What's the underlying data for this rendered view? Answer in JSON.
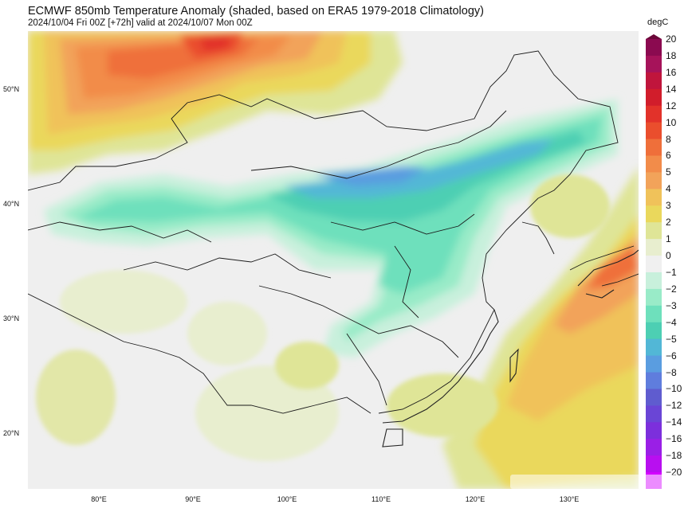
{
  "header": {
    "title": "ECMWF 850mb Temperature Anomaly (shaded, based on ERA5 1979-2018 Climatology)",
    "subtitle": "2024/10/04 Fri 00Z [+72h] valid at 2024/10/07 Mon 00Z"
  },
  "map": {
    "lat_labels": [
      "50°N",
      "40°N",
      "30°N",
      "20°N"
    ],
    "lon_labels": [
      "80°E",
      "90°E",
      "100°E",
      "110°E",
      "120°E",
      "130°E"
    ]
  },
  "colorbar": {
    "unit": "degC",
    "levels": [
      "20",
      "18",
      "16",
      "14",
      "12",
      "10",
      "8",
      "6",
      "5",
      "4",
      "3",
      "2",
      "1",
      "0",
      "−1",
      "−2",
      "−3",
      "−4",
      "−5",
      "−6",
      "−8",
      "−10",
      "−12",
      "−14",
      "−16",
      "−18",
      "−20"
    ],
    "colors": [
      "#8b0a50",
      "#a6135a",
      "#c0153c",
      "#d11d2b",
      "#e2322a",
      "#ea4e2d",
      "#ef6f3a",
      "#f28c4a",
      "#f2a35a",
      "#f0c25a",
      "#ead85c",
      "#dfe597",
      "#e8eecf",
      "#f0f0f0",
      "#c8f0dc",
      "#99ebc8",
      "#6ee0bc",
      "#4dcfb3",
      "#52b7d6",
      "#5a9de0",
      "#5f7ddd",
      "#5f5ccf",
      "#6a45d6",
      "#7c2fdc",
      "#9a1fe6",
      "#b80ff0",
      "#d400ff"
    ]
  }
}
